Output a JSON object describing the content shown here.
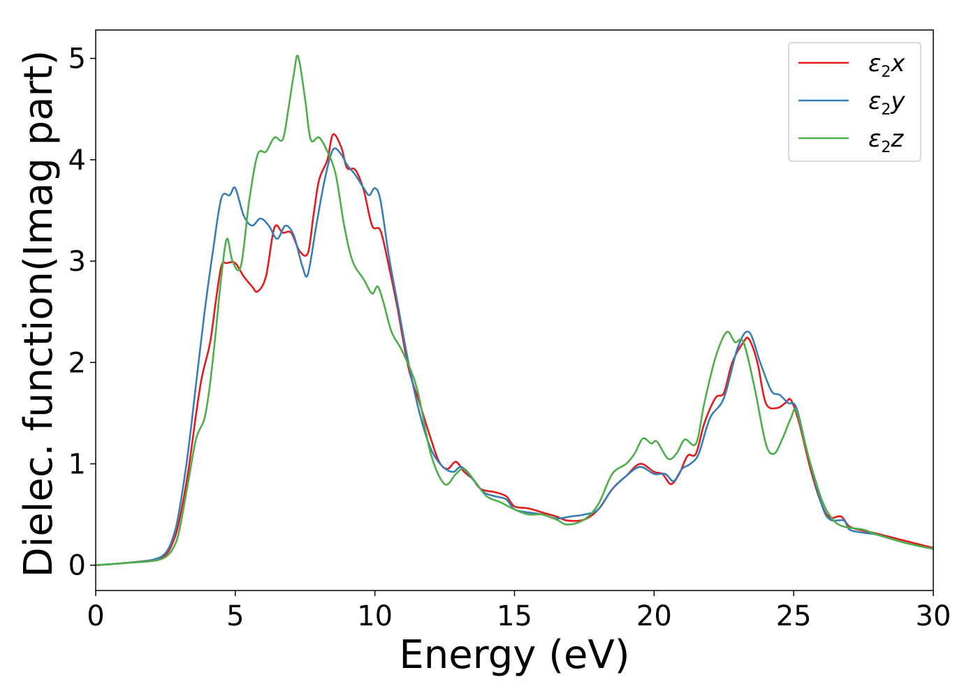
{
  "chart_data": {
    "type": "line",
    "title": "",
    "xlabel": "Energy (eV)",
    "ylabel": "Dielec. function(Imag part)",
    "xlim": [
      0,
      30
    ],
    "ylim": [
      -0.25,
      5.28
    ],
    "xticks": [
      0,
      5,
      10,
      15,
      20,
      25,
      30
    ],
    "yticks": [
      0,
      1,
      2,
      3,
      4,
      5
    ],
    "grid": false,
    "legend_position": "top-right",
    "series": [
      {
        "name": "ε₂x",
        "legend": {
          "sym": "ε",
          "sub": "2",
          "var": "x"
        },
        "color": "#e41a1c",
        "points": [
          [
            0,
            0
          ],
          [
            1,
            0.02
          ],
          [
            2,
            0.05
          ],
          [
            2.5,
            0.1
          ],
          [
            2.8,
            0.25
          ],
          [
            3,
            0.45
          ],
          [
            3.3,
            0.9
          ],
          [
            3.6,
            1.5
          ],
          [
            3.8,
            1.85
          ],
          [
            4.1,
            2.2
          ],
          [
            4.3,
            2.6
          ],
          [
            4.5,
            2.95
          ],
          [
            4.7,
            2.98
          ],
          [
            5,
            2.98
          ],
          [
            5.3,
            2.85
          ],
          [
            5.6,
            2.75
          ],
          [
            5.8,
            2.7
          ],
          [
            6.1,
            2.85
          ],
          [
            6.4,
            3.33
          ],
          [
            6.7,
            3.28
          ],
          [
            7,
            3.28
          ],
          [
            7.3,
            3.1
          ],
          [
            7.6,
            3.08
          ],
          [
            7.8,
            3.45
          ],
          [
            8,
            3.8
          ],
          [
            8.3,
            4.0
          ],
          [
            8.5,
            4.25
          ],
          [
            8.8,
            4.12
          ],
          [
            9,
            3.92
          ],
          [
            9.3,
            3.9
          ],
          [
            9.6,
            3.7
          ],
          [
            9.9,
            3.35
          ],
          [
            10.2,
            3.3
          ],
          [
            10.5,
            2.95
          ],
          [
            10.8,
            2.55
          ],
          [
            11.2,
            1.95
          ],
          [
            11.6,
            1.6
          ],
          [
            12,
            1.25
          ],
          [
            12.3,
            1.02
          ],
          [
            12.6,
            0.95
          ],
          [
            12.9,
            1.02
          ],
          [
            13.2,
            0.92
          ],
          [
            13.5,
            0.85
          ],
          [
            13.8,
            0.75
          ],
          [
            14.3,
            0.72
          ],
          [
            14.7,
            0.68
          ],
          [
            15,
            0.58
          ],
          [
            15.5,
            0.56
          ],
          [
            16,
            0.52
          ],
          [
            16.5,
            0.48
          ],
          [
            16.9,
            0.44
          ],
          [
            17.5,
            0.45
          ],
          [
            18,
            0.55
          ],
          [
            18.5,
            0.75
          ],
          [
            19,
            0.88
          ],
          [
            19.5,
            1.0
          ],
          [
            20,
            0.92
          ],
          [
            20.3,
            0.9
          ],
          [
            20.6,
            0.8
          ],
          [
            20.9,
            0.9
          ],
          [
            21.2,
            1.08
          ],
          [
            21.5,
            1.1
          ],
          [
            21.8,
            1.4
          ],
          [
            22.2,
            1.65
          ],
          [
            22.5,
            1.7
          ],
          [
            22.8,
            2.0
          ],
          [
            23.2,
            2.2
          ],
          [
            23.4,
            2.23
          ],
          [
            23.7,
            2.0
          ],
          [
            24,
            1.6
          ],
          [
            24.4,
            1.55
          ],
          [
            24.7,
            1.6
          ],
          [
            24.9,
            1.63
          ],
          [
            25.2,
            1.4
          ],
          [
            25.6,
            0.95
          ],
          [
            26,
            0.6
          ],
          [
            26.3,
            0.47
          ],
          [
            26.7,
            0.48
          ],
          [
            27,
            0.38
          ],
          [
            27.5,
            0.34
          ],
          [
            28,
            0.31
          ],
          [
            29,
            0.24
          ],
          [
            30,
            0.17
          ]
        ]
      },
      {
        "name": "ε₂y",
        "legend": {
          "sym": "ε",
          "sub": "2",
          "var": "y"
        },
        "color": "#377eb8",
        "points": [
          [
            0,
            0
          ],
          [
            1,
            0.02
          ],
          [
            2,
            0.05
          ],
          [
            2.5,
            0.12
          ],
          [
            2.8,
            0.3
          ],
          [
            3,
            0.55
          ],
          [
            3.3,
            1.1
          ],
          [
            3.6,
            1.8
          ],
          [
            3.9,
            2.5
          ],
          [
            4.2,
            3.1
          ],
          [
            4.5,
            3.62
          ],
          [
            4.8,
            3.65
          ],
          [
            5,
            3.72
          ],
          [
            5.3,
            3.45
          ],
          [
            5.6,
            3.35
          ],
          [
            5.9,
            3.42
          ],
          [
            6.2,
            3.35
          ],
          [
            6.5,
            3.22
          ],
          [
            6.8,
            3.35
          ],
          [
            7.1,
            3.25
          ],
          [
            7.4,
            2.95
          ],
          [
            7.6,
            2.87
          ],
          [
            7.9,
            3.35
          ],
          [
            8.2,
            3.8
          ],
          [
            8.5,
            4.1
          ],
          [
            8.8,
            4.05
          ],
          [
            9,
            3.95
          ],
          [
            9.3,
            3.85
          ],
          [
            9.6,
            3.72
          ],
          [
            9.8,
            3.65
          ],
          [
            10,
            3.72
          ],
          [
            10.2,
            3.6
          ],
          [
            10.5,
            3.05
          ],
          [
            10.8,
            2.6
          ],
          [
            11.2,
            2.0
          ],
          [
            11.6,
            1.5
          ],
          [
            12,
            1.15
          ],
          [
            12.4,
            0.98
          ],
          [
            12.8,
            0.92
          ],
          [
            13.1,
            0.97
          ],
          [
            13.5,
            0.85
          ],
          [
            13.9,
            0.72
          ],
          [
            14.3,
            0.68
          ],
          [
            14.7,
            0.65
          ],
          [
            15,
            0.55
          ],
          [
            15.5,
            0.52
          ],
          [
            16,
            0.5
          ],
          [
            16.5,
            0.46
          ],
          [
            17,
            0.48
          ],
          [
            17.5,
            0.5
          ],
          [
            18,
            0.55
          ],
          [
            18.5,
            0.75
          ],
          [
            19,
            0.88
          ],
          [
            19.5,
            0.97
          ],
          [
            20,
            0.9
          ],
          [
            20.4,
            0.9
          ],
          [
            20.7,
            0.83
          ],
          [
            21,
            0.95
          ],
          [
            21.3,
            1.0
          ],
          [
            21.6,
            1.1
          ],
          [
            22,
            1.45
          ],
          [
            22.5,
            1.65
          ],
          [
            23,
            2.15
          ],
          [
            23.4,
            2.3
          ],
          [
            23.8,
            2.0
          ],
          [
            24.2,
            1.72
          ],
          [
            24.5,
            1.68
          ],
          [
            24.8,
            1.6
          ],
          [
            25.1,
            1.55
          ],
          [
            25.5,
            1.1
          ],
          [
            26,
            0.6
          ],
          [
            26.3,
            0.45
          ],
          [
            26.8,
            0.44
          ],
          [
            27,
            0.35
          ],
          [
            27.5,
            0.32
          ],
          [
            28,
            0.3
          ],
          [
            29,
            0.22
          ],
          [
            30,
            0.16
          ]
        ]
      },
      {
        "name": "ε₂z",
        "legend": {
          "sym": "ε",
          "sub": "2",
          "var": "z"
        },
        "color": "#4daf4a",
        "points": [
          [
            0,
            0
          ],
          [
            1,
            0.02
          ],
          [
            2,
            0.04
          ],
          [
            2.5,
            0.08
          ],
          [
            2.8,
            0.18
          ],
          [
            3,
            0.35
          ],
          [
            3.3,
            0.8
          ],
          [
            3.6,
            1.25
          ],
          [
            3.9,
            1.45
          ],
          [
            4.1,
            1.8
          ],
          [
            4.3,
            2.3
          ],
          [
            4.5,
            2.85
          ],
          [
            4.7,
            3.22
          ],
          [
            4.9,
            3.0
          ],
          [
            5.2,
            2.95
          ],
          [
            5.5,
            3.6
          ],
          [
            5.8,
            4.05
          ],
          [
            6.1,
            4.08
          ],
          [
            6.4,
            4.22
          ],
          [
            6.7,
            4.2
          ],
          [
            6.9,
            4.5
          ],
          [
            7.1,
            4.85
          ],
          [
            7.25,
            5.02
          ],
          [
            7.5,
            4.6
          ],
          [
            7.7,
            4.2
          ],
          [
            8,
            4.22
          ],
          [
            8.3,
            4.08
          ],
          [
            8.6,
            3.85
          ],
          [
            8.9,
            3.35
          ],
          [
            9.2,
            3.0
          ],
          [
            9.6,
            2.82
          ],
          [
            9.9,
            2.68
          ],
          [
            10.1,
            2.75
          ],
          [
            10.3,
            2.6
          ],
          [
            10.6,
            2.3
          ],
          [
            11,
            2.1
          ],
          [
            11.5,
            1.75
          ],
          [
            12,
            1.1
          ],
          [
            12.5,
            0.8
          ],
          [
            12.9,
            0.9
          ],
          [
            13.2,
            0.95
          ],
          [
            13.6,
            0.82
          ],
          [
            14,
            0.68
          ],
          [
            14.5,
            0.62
          ],
          [
            15,
            0.55
          ],
          [
            15.5,
            0.5
          ],
          [
            16,
            0.5
          ],
          [
            16.5,
            0.45
          ],
          [
            16.9,
            0.4
          ],
          [
            17.5,
            0.45
          ],
          [
            18,
            0.6
          ],
          [
            18.5,
            0.9
          ],
          [
            19,
            1.0
          ],
          [
            19.3,
            1.1
          ],
          [
            19.6,
            1.25
          ],
          [
            19.9,
            1.2
          ],
          [
            20.1,
            1.22
          ],
          [
            20.5,
            1.05
          ],
          [
            20.8,
            1.1
          ],
          [
            21.1,
            1.24
          ],
          [
            21.5,
            1.2
          ],
          [
            21.8,
            1.6
          ],
          [
            22.2,
            2.05
          ],
          [
            22.6,
            2.3
          ],
          [
            22.9,
            2.2
          ],
          [
            23.2,
            2.2
          ],
          [
            23.6,
            1.75
          ],
          [
            24,
            1.2
          ],
          [
            24.3,
            1.1
          ],
          [
            24.6,
            1.25
          ],
          [
            24.9,
            1.45
          ],
          [
            25.1,
            1.52
          ],
          [
            25.5,
            1.1
          ],
          [
            26,
            0.65
          ],
          [
            26.4,
            0.45
          ],
          [
            26.8,
            0.38
          ],
          [
            27.5,
            0.35
          ],
          [
            28,
            0.3
          ],
          [
            29,
            0.22
          ],
          [
            30,
            0.16
          ]
        ]
      }
    ]
  }
}
